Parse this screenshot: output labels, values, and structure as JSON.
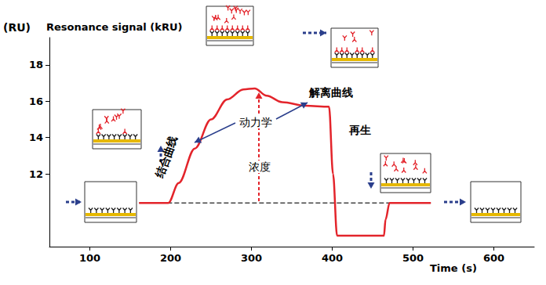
{
  "chart_data": {
    "type": "line",
    "unit_label": "(RU)",
    "ylabel": "Resonance signal (kRU)",
    "xlabel": "Time (s)",
    "annotations": [
      "结合曲线",
      "动力学",
      "浓度",
      "解离曲线",
      "再生"
    ],
    "x": [
      161,
      197,
      210,
      230,
      250,
      270,
      290,
      304,
      319,
      338,
      367,
      396,
      401,
      406,
      464,
      466,
      471,
      522
    ],
    "values": [
      10.4,
      10.4,
      11.5,
      13.4,
      15.0,
      16.1,
      16.65,
      16.7,
      16.3,
      15.95,
      15.75,
      15.7,
      12,
      8.6,
      8.6,
      9.5,
      10.4,
      10.4
    ],
    "color": "#e3242b",
    "line_style": "solid",
    "baseline": {
      "x": [
        161,
        522
      ],
      "values": [
        10.4,
        10.4
      ],
      "line_style": "dashed"
    },
    "xlim": [
      50,
      650
    ],
    "xticks": [
      100,
      200,
      300,
      400,
      500,
      600
    ],
    "ylim": [
      8,
      19.5
    ],
    "yticks": [
      12,
      14,
      16,
      18
    ],
    "grid": false
  }
}
